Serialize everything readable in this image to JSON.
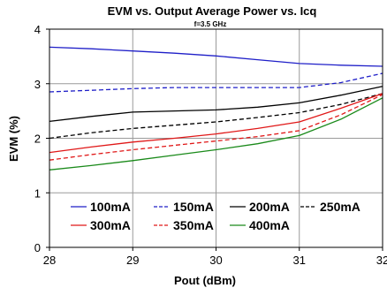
{
  "chart_data": {
    "type": "line",
    "title": "EVM vs. Output Average Power vs. Icq",
    "subtitle": "f=3.5 GHz",
    "xlabel": "Pout (dBm)",
    "ylabel": "EVM (%)",
    "xlim": [
      28,
      32
    ],
    "ylim": [
      0,
      4
    ],
    "xticks": [
      "28",
      "29",
      "30",
      "31",
      "32"
    ],
    "yticks": [
      "0",
      "1",
      "2",
      "3",
      "4"
    ],
    "grid": true,
    "legend_position": "inside-bottom",
    "x": [
      28,
      28.5,
      29,
      29.5,
      30,
      30.5,
      31,
      31.5,
      32
    ],
    "series": [
      {
        "name": "100mA",
        "color": "#1f1fc8",
        "dash": "solid",
        "values": [
          3.67,
          3.64,
          3.6,
          3.56,
          3.51,
          3.44,
          3.37,
          3.34,
          3.32
        ]
      },
      {
        "name": "150mA",
        "color": "#1f1fc8",
        "dash": "dashed",
        "values": [
          2.85,
          2.88,
          2.91,
          2.93,
          2.93,
          2.93,
          2.93,
          3.02,
          3.19
        ]
      },
      {
        "name": "200mA",
        "color": "#000000",
        "dash": "solid",
        "values": [
          2.31,
          2.4,
          2.48,
          2.5,
          2.52,
          2.57,
          2.65,
          2.79,
          2.95
        ]
      },
      {
        "name": "250mA",
        "color": "#000000",
        "dash": "dashed",
        "values": [
          2.0,
          2.1,
          2.18,
          2.24,
          2.3,
          2.38,
          2.47,
          2.62,
          2.82
        ]
      },
      {
        "name": "300mA",
        "color": "#e01818",
        "dash": "solid",
        "values": [
          1.74,
          1.84,
          1.93,
          2.0,
          2.08,
          2.18,
          2.3,
          2.55,
          2.82
        ]
      },
      {
        "name": "350mA",
        "color": "#e01818",
        "dash": "dashed",
        "values": [
          1.6,
          1.7,
          1.79,
          1.87,
          1.95,
          2.03,
          2.14,
          2.43,
          2.8
        ]
      },
      {
        "name": "400mA",
        "color": "#1a8a1a",
        "dash": "solid",
        "values": [
          1.42,
          1.5,
          1.59,
          1.69,
          1.79,
          1.9,
          2.05,
          2.35,
          2.74
        ]
      }
    ]
  }
}
